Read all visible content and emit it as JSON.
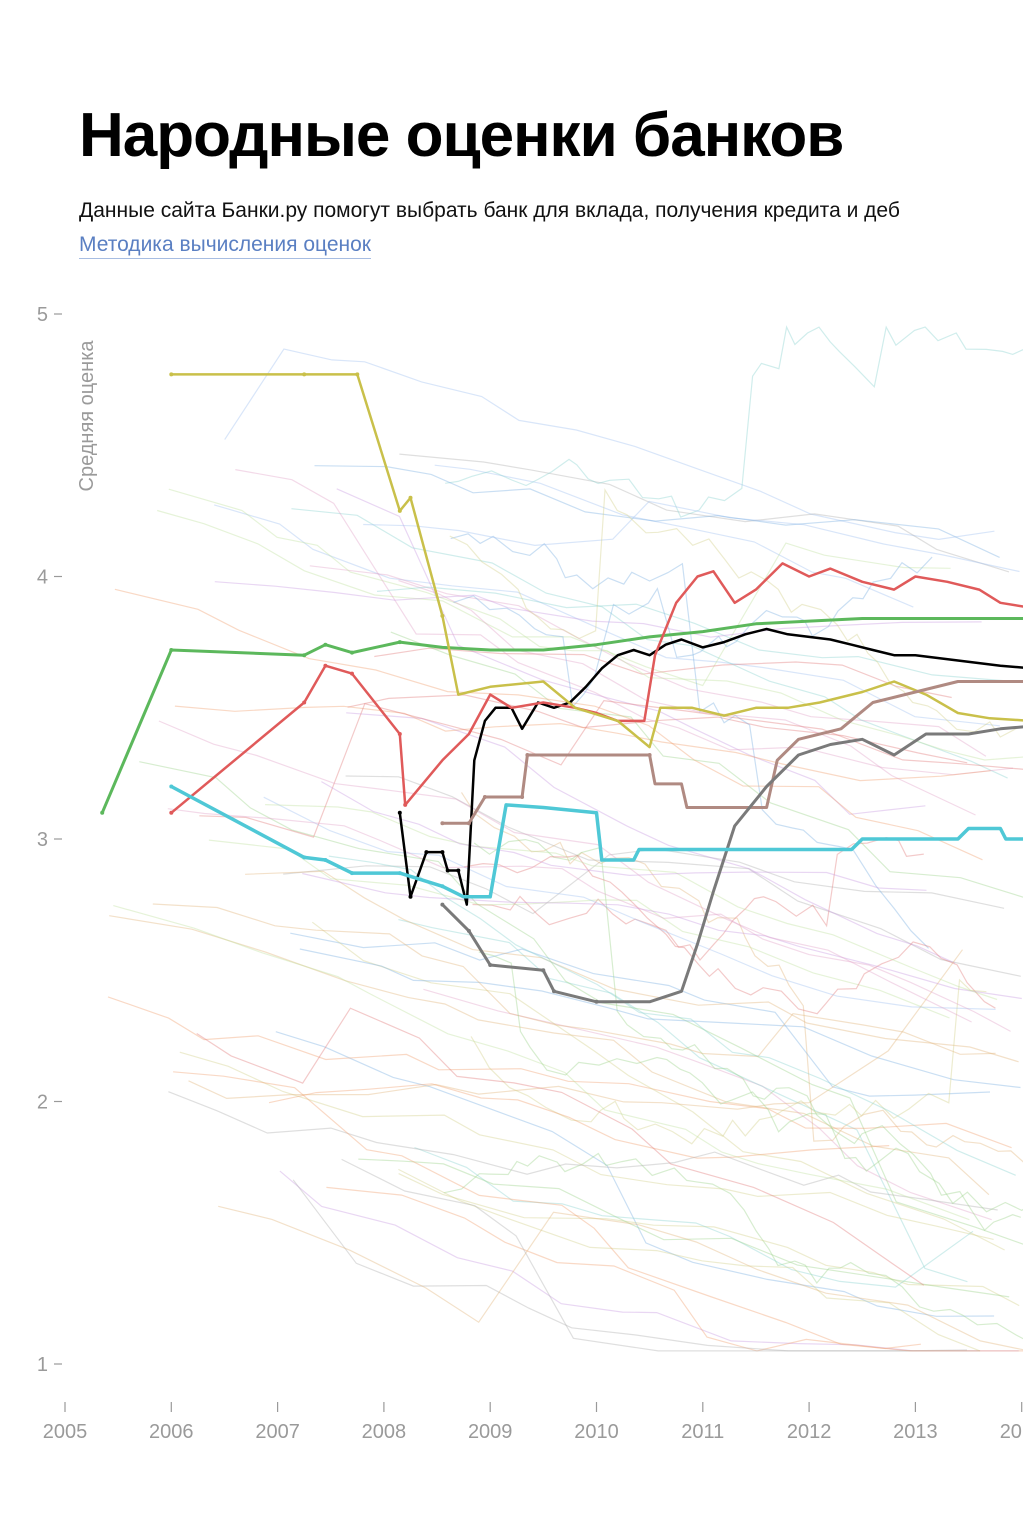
{
  "header": {
    "title": "Народные оценки банков",
    "subtitle": "Данные сайта Банки.ру помогут выбрать банк для вклада, получения кредита и деб",
    "method_link": "Методика вычисления оценок"
  },
  "chart_data": {
    "type": "line",
    "ylabel": "Средняя оценка",
    "xlabel": "",
    "xlim": [
      2005,
      2014.1
    ],
    "ylim": [
      1,
      5
    ],
    "x_ticks": [
      "2005",
      "2006",
      "2007",
      "2008",
      "2009",
      "2010",
      "2011",
      "2012",
      "2013",
      "20"
    ],
    "y_ticks": [
      "1",
      "2",
      "3",
      "4",
      "5"
    ],
    "grid": false,
    "legend": "none",
    "background_series_color": "multicolor, faint",
    "series": [
      {
        "color": "#000000",
        "width": 2.5,
        "points": [
          [
            2008.15,
            3.1
          ],
          [
            2008.25,
            2.78
          ],
          [
            2008.4,
            2.95
          ],
          [
            2008.55,
            2.95
          ],
          [
            2008.6,
            2.88
          ],
          [
            2008.7,
            2.88
          ],
          [
            2008.78,
            2.75
          ],
          [
            2008.85,
            3.3
          ],
          [
            2008.95,
            3.45
          ],
          [
            2009.05,
            3.5
          ],
          [
            2009.2,
            3.5
          ],
          [
            2009.3,
            3.42
          ],
          [
            2009.45,
            3.52
          ],
          [
            2009.6,
            3.5
          ],
          [
            2009.75,
            3.52
          ],
          [
            2009.9,
            3.58
          ],
          [
            2010.05,
            3.65
          ],
          [
            2010.2,
            3.7
          ],
          [
            2010.35,
            3.72
          ],
          [
            2010.5,
            3.7
          ],
          [
            2010.65,
            3.74
          ],
          [
            2010.8,
            3.76
          ],
          [
            2011.0,
            3.73
          ],
          [
            2011.2,
            3.75
          ],
          [
            2011.4,
            3.78
          ],
          [
            2011.6,
            3.8
          ],
          [
            2011.8,
            3.78
          ],
          [
            2012.0,
            3.77
          ],
          [
            2012.2,
            3.76
          ],
          [
            2012.4,
            3.74
          ],
          [
            2012.6,
            3.72
          ],
          [
            2012.8,
            3.7
          ],
          [
            2013.0,
            3.7
          ],
          [
            2013.2,
            3.69
          ],
          [
            2013.4,
            3.68
          ],
          [
            2013.6,
            3.67
          ],
          [
            2013.8,
            3.66
          ],
          [
            2014.1,
            3.65
          ]
        ]
      },
      {
        "color": "#5cb85c",
        "width": 3,
        "points": [
          [
            2005.35,
            3.1
          ],
          [
            2006.0,
            3.72
          ],
          [
            2007.25,
            3.7
          ],
          [
            2007.45,
            3.74
          ],
          [
            2007.7,
            3.71
          ],
          [
            2008.15,
            3.75
          ],
          [
            2008.55,
            3.73
          ],
          [
            2009.0,
            3.72
          ],
          [
            2009.5,
            3.72
          ],
          [
            2010.0,
            3.74
          ],
          [
            2010.5,
            3.77
          ],
          [
            2011.0,
            3.79
          ],
          [
            2011.5,
            3.82
          ],
          [
            2012.0,
            3.83
          ],
          [
            2012.5,
            3.84
          ],
          [
            2013.0,
            3.84
          ],
          [
            2013.5,
            3.84
          ],
          [
            2014.1,
            3.84
          ]
        ]
      },
      {
        "color": "#e05a5a",
        "width": 2.5,
        "points": [
          [
            2006.0,
            3.1
          ],
          [
            2007.25,
            3.52
          ],
          [
            2007.45,
            3.66
          ],
          [
            2007.7,
            3.63
          ],
          [
            2008.15,
            3.4
          ],
          [
            2008.2,
            3.13
          ],
          [
            2008.55,
            3.3
          ],
          [
            2008.8,
            3.4
          ],
          [
            2009.0,
            3.55
          ],
          [
            2009.2,
            3.5
          ],
          [
            2009.5,
            3.52
          ],
          [
            2009.8,
            3.5
          ],
          [
            2010.0,
            3.48
          ],
          [
            2010.2,
            3.45
          ],
          [
            2010.45,
            3.45
          ],
          [
            2010.55,
            3.7
          ],
          [
            2010.75,
            3.9
          ],
          [
            2010.95,
            4.0
          ],
          [
            2011.1,
            4.02
          ],
          [
            2011.3,
            3.9
          ],
          [
            2011.5,
            3.95
          ],
          [
            2011.75,
            4.05
          ],
          [
            2012.0,
            4.0
          ],
          [
            2012.2,
            4.03
          ],
          [
            2012.5,
            3.98
          ],
          [
            2012.8,
            3.95
          ],
          [
            2013.0,
            4.0
          ],
          [
            2013.3,
            3.98
          ],
          [
            2013.6,
            3.95
          ],
          [
            2013.8,
            3.9
          ],
          [
            2014.1,
            3.88
          ]
        ]
      },
      {
        "color": "#c9c04a",
        "width": 2.5,
        "points": [
          [
            2006.0,
            4.77
          ],
          [
            2007.25,
            4.77
          ],
          [
            2007.75,
            4.77
          ],
          [
            2008.15,
            4.25
          ],
          [
            2008.25,
            4.3
          ],
          [
            2008.55,
            3.85
          ],
          [
            2008.7,
            3.55
          ],
          [
            2009.0,
            3.58
          ],
          [
            2009.5,
            3.6
          ],
          [
            2009.8,
            3.5
          ],
          [
            2010.2,
            3.45
          ],
          [
            2010.5,
            3.35
          ],
          [
            2010.6,
            3.5
          ],
          [
            2010.9,
            3.5
          ],
          [
            2011.2,
            3.47
          ],
          [
            2011.5,
            3.5
          ],
          [
            2011.8,
            3.5
          ],
          [
            2012.1,
            3.52
          ],
          [
            2012.5,
            3.56
          ],
          [
            2012.8,
            3.6
          ],
          [
            2013.1,
            3.55
          ],
          [
            2013.4,
            3.48
          ],
          [
            2013.7,
            3.46
          ],
          [
            2014.1,
            3.45
          ]
        ]
      },
      {
        "color": "#b08a82",
        "width": 3,
        "points": [
          [
            2008.55,
            3.06
          ],
          [
            2008.8,
            3.06
          ],
          [
            2008.95,
            3.16
          ],
          [
            2009.3,
            3.16
          ],
          [
            2009.35,
            3.32
          ],
          [
            2010.5,
            3.32
          ],
          [
            2010.55,
            3.21
          ],
          [
            2010.8,
            3.21
          ],
          [
            2010.85,
            3.12
          ],
          [
            2011.6,
            3.12
          ],
          [
            2011.7,
            3.3
          ],
          [
            2011.9,
            3.38
          ],
          [
            2012.3,
            3.42
          ],
          [
            2012.6,
            3.52
          ],
          [
            2013.0,
            3.56
          ],
          [
            2013.4,
            3.6
          ],
          [
            2013.8,
            3.6
          ],
          [
            2014.1,
            3.6
          ]
        ]
      },
      {
        "color": "#7a7a7a",
        "width": 3,
        "points": [
          [
            2008.55,
            2.75
          ],
          [
            2008.8,
            2.65
          ],
          [
            2009.0,
            2.52
          ],
          [
            2009.5,
            2.5
          ],
          [
            2009.6,
            2.42
          ],
          [
            2010.0,
            2.38
          ],
          [
            2010.5,
            2.38
          ],
          [
            2010.8,
            2.42
          ],
          [
            2010.95,
            2.6
          ],
          [
            2011.1,
            2.8
          ],
          [
            2011.3,
            3.05
          ],
          [
            2011.6,
            3.2
          ],
          [
            2011.9,
            3.32
          ],
          [
            2012.2,
            3.36
          ],
          [
            2012.5,
            3.38
          ],
          [
            2012.8,
            3.32
          ],
          [
            2013.1,
            3.4
          ],
          [
            2013.5,
            3.4
          ],
          [
            2013.8,
            3.42
          ],
          [
            2014.1,
            3.43
          ]
        ]
      },
      {
        "color": "#4fc8d6",
        "width": 3.5,
        "points": [
          [
            2006.0,
            3.2
          ],
          [
            2007.25,
            2.93
          ],
          [
            2007.45,
            2.92
          ],
          [
            2007.7,
            2.87
          ],
          [
            2008.15,
            2.87
          ],
          [
            2008.55,
            2.82
          ],
          [
            2008.75,
            2.78
          ],
          [
            2009.0,
            2.78
          ],
          [
            2009.15,
            3.13
          ],
          [
            2009.5,
            3.12
          ],
          [
            2010.0,
            3.1
          ],
          [
            2010.05,
            2.92
          ],
          [
            2010.35,
            2.92
          ],
          [
            2010.4,
            2.96
          ],
          [
            2011.5,
            2.96
          ],
          [
            2012.4,
            2.96
          ],
          [
            2012.5,
            3.0
          ],
          [
            2013.4,
            3.0
          ],
          [
            2013.5,
            3.04
          ],
          [
            2013.8,
            3.04
          ],
          [
            2013.85,
            3.0
          ],
          [
            2014.1,
            3.0
          ]
        ]
      }
    ]
  }
}
